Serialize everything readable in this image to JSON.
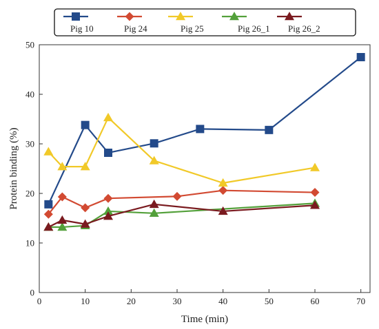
{
  "chart_data": {
    "type": "line",
    "title": "",
    "xlabel": "Time (min)",
    "ylabel": "Protein binding (%)",
    "xlim": [
      0,
      72
    ],
    "ylim": [
      0,
      50
    ],
    "xticks": [
      0,
      10,
      20,
      30,
      40,
      50,
      60,
      70
    ],
    "yticks": [
      0,
      10,
      20,
      30,
      40,
      50
    ],
    "grid": false,
    "legend_position": "top",
    "series": [
      {
        "name": "Pig 10",
        "color": "#234a8a",
        "marker": "square",
        "x": [
          2,
          5,
          10,
          15,
          25,
          35,
          50,
          70
        ],
        "y": [
          17.8,
          null,
          33.8,
          28.2,
          30.1,
          33.0,
          32.8,
          47.5
        ]
      },
      {
        "name": "Pig 24",
        "color": "#d24a32",
        "marker": "diamond",
        "x": [
          2,
          5,
          10,
          15,
          30,
          40,
          60
        ],
        "y": [
          15.8,
          19.3,
          17.1,
          19.0,
          19.4,
          20.6,
          20.2
        ]
      },
      {
        "name": "Pig 25",
        "color": "#f1c928",
        "marker": "triangle",
        "x": [
          2,
          5,
          10,
          15,
          25,
          40,
          60
        ],
        "y": [
          28.4,
          25.4,
          25.4,
          35.3,
          26.6,
          22.1,
          25.2
        ]
      },
      {
        "name": "Pig 26_1",
        "color": "#53a03a",
        "marker": "triangle",
        "x": [
          2,
          5,
          10,
          15,
          25,
          60
        ],
        "y": [
          13.2,
          13.2,
          13.5,
          16.4,
          16.0,
          18.0
        ]
      },
      {
        "name": "Pig 26_2",
        "color": "#7a1a1f",
        "marker": "triangle",
        "x": [
          2,
          5,
          10,
          15,
          25,
          40,
          60
        ],
        "y": [
          13.2,
          14.6,
          13.8,
          15.4,
          17.8,
          16.4,
          17.6
        ]
      }
    ]
  }
}
